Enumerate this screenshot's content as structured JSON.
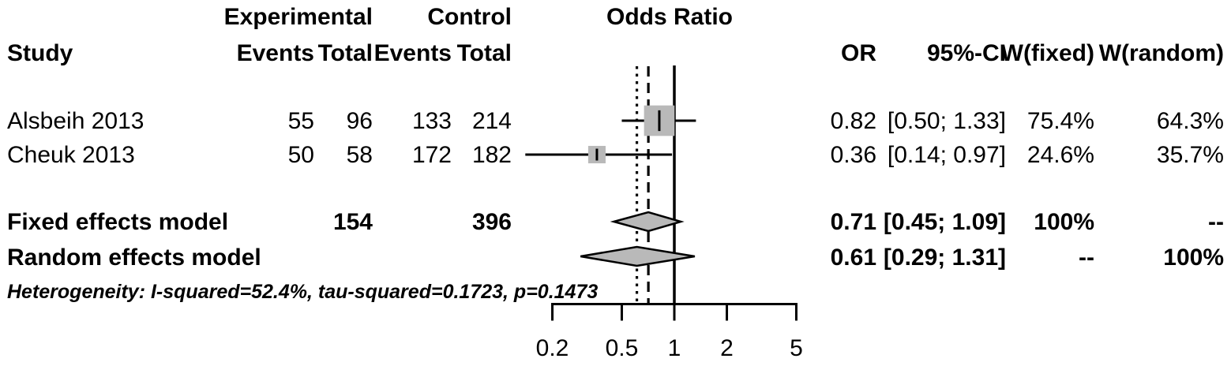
{
  "header": {
    "plot_title": "Odds Ratio",
    "group_experimental": "Experimental",
    "group_control": "Control",
    "study": "Study",
    "events_label": "Events",
    "total_label": "Total",
    "or": "OR",
    "ci": "95%-CI",
    "w_fixed": "W(fixed)",
    "w_random": "W(random)"
  },
  "rows": [
    {
      "study": "Alsbeih 2013",
      "events_exp": "55",
      "total_exp": "96",
      "events_ctrl": "133",
      "total_ctrl": "214",
      "or": "0.82",
      "ci": "[0.50; 1.33]",
      "w_fixed": "75.4%",
      "w_random": "64.3%"
    },
    {
      "study": "Cheuk 2013",
      "events_exp": "50",
      "total_exp": "58",
      "events_ctrl": "172",
      "total_ctrl": "182",
      "or": "0.36",
      "ci": "[0.14; 0.97]",
      "w_fixed": "24.6%",
      "w_random": "35.7%"
    }
  ],
  "models": [
    {
      "label": "Fixed effects model",
      "total_exp": "154",
      "total_ctrl": "396",
      "or": "0.71",
      "ci": "[0.45; 1.09]",
      "w_fixed": "100%",
      "w_random": "--"
    },
    {
      "label": "Random effects model",
      "total_exp": "",
      "total_ctrl": "",
      "or": "0.61",
      "ci": "[0.29; 1.31]",
      "w_fixed": "--",
      "w_random": "100%"
    }
  ],
  "heterogeneity": "Heterogeneity: I-squared=52.4%, tau-squared=0.1723, p=0.1473",
  "chart_data": {
    "type": "forest",
    "effect_measure": "Odds Ratio",
    "scale": "log10",
    "axis_ticks": [
      0.2,
      0.5,
      1,
      2,
      5
    ],
    "axis_range": [
      0.2,
      5
    ],
    "reference_line": 1,
    "fixed_effect_dashed_line": 0.71,
    "random_effect_dotted_line": 0.61,
    "studies": [
      {
        "name": "Alsbeih 2013",
        "events_exp": 55,
        "total_exp": 96,
        "events_ctrl": 133,
        "total_ctrl": 214,
        "or": 0.82,
        "ci_low": 0.5,
        "ci_high": 1.33,
        "weight_fixed": 75.4,
        "weight_random": 64.3
      },
      {
        "name": "Cheuk 2013",
        "events_exp": 50,
        "total_exp": 58,
        "events_ctrl": 172,
        "total_ctrl": 182,
        "or": 0.36,
        "ci_low": 0.14,
        "ci_high": 0.97,
        "weight_fixed": 24.6,
        "weight_random": 35.7
      }
    ],
    "summaries": [
      {
        "name": "Fixed effects model",
        "total_exp": 154,
        "total_ctrl": 396,
        "or": 0.71,
        "ci_low": 0.45,
        "ci_high": 1.09
      },
      {
        "name": "Random effects model",
        "or": 0.61,
        "ci_low": 0.29,
        "ci_high": 1.31
      }
    ],
    "heterogeneity": {
      "i_squared_pct": 52.4,
      "tau_squared": 0.1723,
      "p": 0.1473
    },
    "colors": {
      "marker_fill": "#b9b9b9",
      "line": "#000000",
      "background": "#ffffff"
    }
  }
}
